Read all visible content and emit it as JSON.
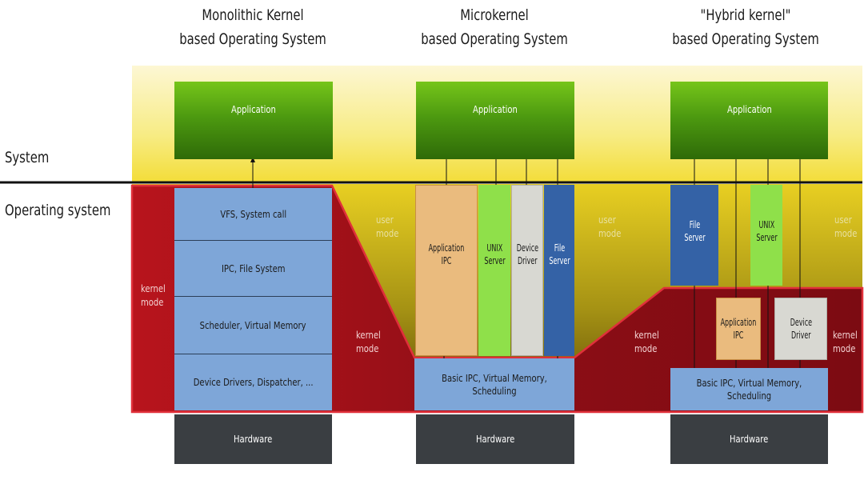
{
  "headings": {
    "monolithic": {
      "line1": "Monolithic Kernel",
      "line2": "based Operating System"
    },
    "micro": {
      "line1": "Microkernel",
      "line2": "based Operating System"
    },
    "hybrid": {
      "line1": "\"Hybrid kernel\"",
      "line2": "based Operating System"
    }
  },
  "sides": {
    "system": "System",
    "operating_system": "Operating system"
  },
  "monolithic": {
    "application": "Application",
    "layers": [
      "VFS, System call",
      "IPC, File System",
      "Scheduler, Virtual Memory",
      "Device Drivers, Dispatcher, ..."
    ],
    "hardware": "Hardware",
    "kernel_mode": [
      "kernel",
      "mode"
    ]
  },
  "micro": {
    "application": "Application",
    "app_ipc": [
      "Application",
      "IPC"
    ],
    "unix_server": [
      "UNIX",
      "Server"
    ],
    "device_driver": [
      "Device",
      "Driver"
    ],
    "file_server": [
      "File",
      "Server"
    ],
    "base": "Basic IPC, Virtual Memory, Scheduling",
    "hardware": "Hardware",
    "user_mode_left": [
      "user",
      "mode"
    ],
    "user_mode_right": [
      "user",
      "mode"
    ],
    "kernel_mode": [
      "kernel",
      "mode"
    ]
  },
  "hybrid": {
    "application": "Application",
    "file_server": [
      "File",
      "Server"
    ],
    "unix_server": [
      "UNIX",
      "Server"
    ],
    "app_ipc": [
      "Application",
      "IPC"
    ],
    "device_driver": [
      "Device",
      "Driver"
    ],
    "base": "Basic IPC, Virtual Memory, Scheduling",
    "hardware": "Hardware",
    "user_mode": [
      "user",
      "mode"
    ],
    "kernel_mode_left": [
      "kernel",
      "mode"
    ],
    "kernel_mode_right": [
      "kernel",
      "mode"
    ]
  },
  "colors": {
    "user_space": "#f5e35a",
    "kernel_space": "#a5121a",
    "separator": "#1a1a1a",
    "application": "#4d9a10",
    "layer": "#7ea6d8",
    "hardware": "#3a3e42"
  }
}
